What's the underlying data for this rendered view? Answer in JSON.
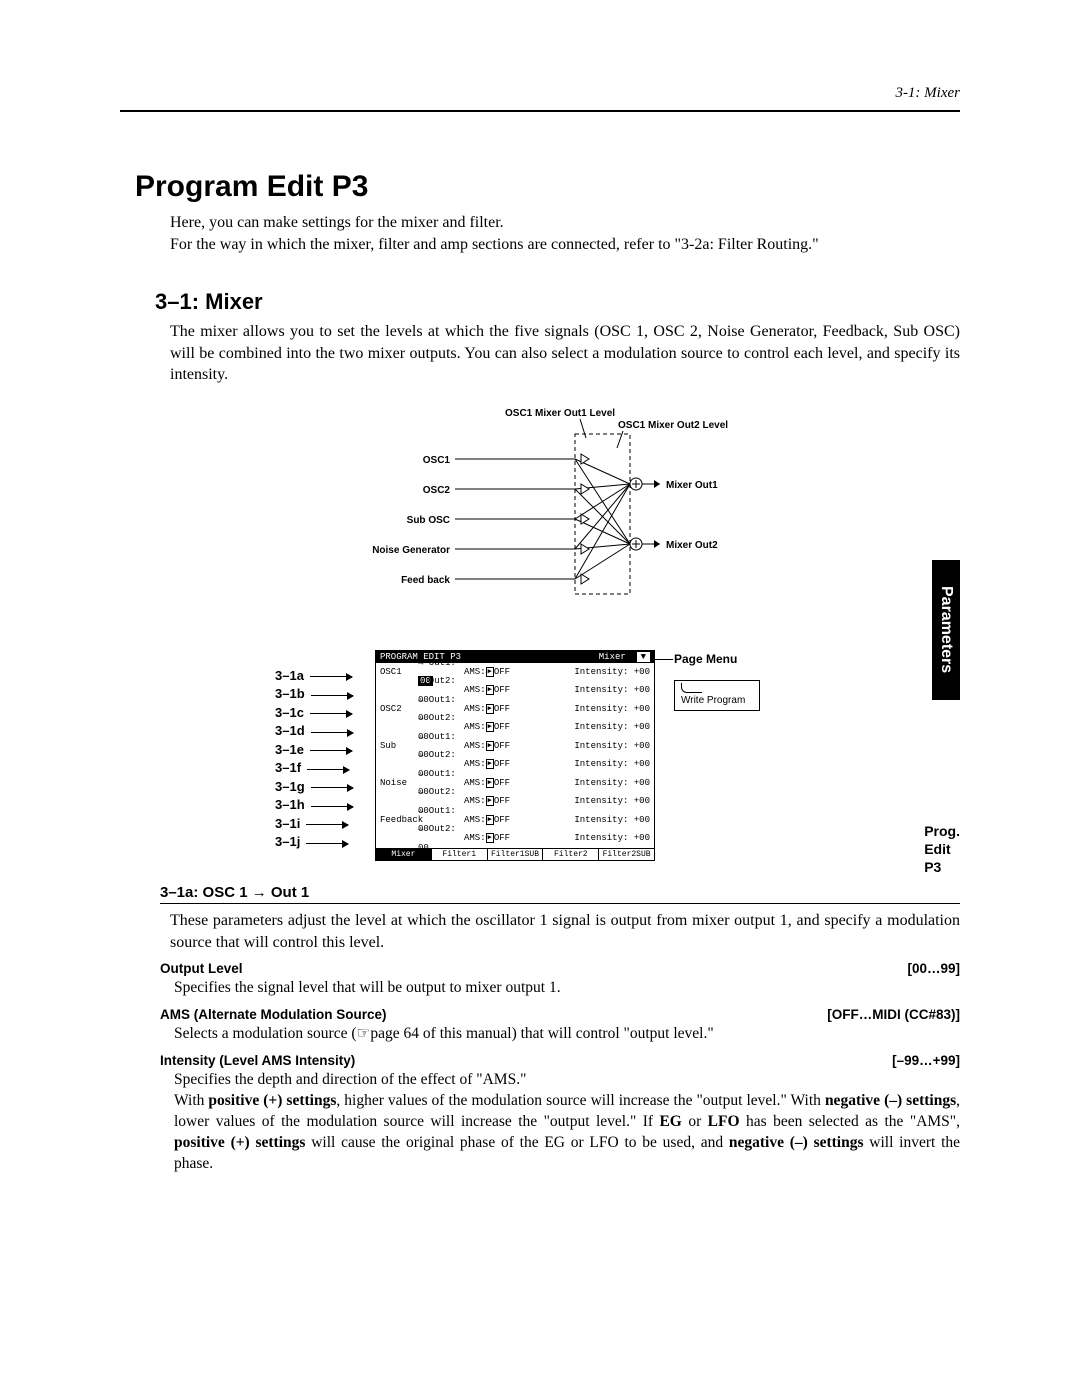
{
  "page_header": "3-1: Mixer",
  "main_title": "Program Edit P3",
  "intro1": "Here, you can make settings for the mixer and filter.",
  "intro2": "For the way in which the mixer, filter and amp sections are connected, refer to \"3-2a: Filter Routing.\"",
  "mixer_title": "3–1: Mixer",
  "mixer_body": "The mixer allows you to set the levels at which the five signals (OSC 1, OSC 2, Noise Generator, Feedback, Sub OSC) will be combined into the two mixer outputs. You can also select a modulation source to control each level, and specify its intensity.",
  "diagram": {
    "label_top1": "OSC1 Mixer Out1 Level",
    "label_top2": "OSC1 Mixer Out2 Level",
    "inputs": [
      "OSC1",
      "OSC2",
      "Sub OSC",
      "Noise Generator",
      "Feed back"
    ],
    "outputs": [
      "Mixer Out1",
      "Mixer Out2"
    ],
    "fontsize": 10,
    "font_family": "Arial",
    "font_weight": "bold",
    "line_color": "#000000",
    "dash": "4,3"
  },
  "screen": {
    "title_left": "PROGRAM EDIT P3",
    "title_right": "Mixer",
    "menu_glyph": "▼",
    "row_labels": [
      "3–1a",
      "3–1b",
      "3–1c",
      "3–1d",
      "3–1e",
      "3–1f",
      "3–1g",
      "3–1h",
      "3–1i",
      "3–1j"
    ],
    "rows": [
      {
        "lbl": "OSC1",
        "out": "→ Out1: ",
        "val": "00",
        "hl": true,
        "ams": "AMS:",
        "amsbtn": "▶",
        "amsv": "OFF",
        "int": "Intensity: +00"
      },
      {
        "lbl": "",
        "out": "→ Out2: 00",
        "val": "",
        "hl": false,
        "ams": "AMS:",
        "amsbtn": "▶",
        "amsv": "OFF",
        "int": "Intensity: +00"
      },
      {
        "lbl": "OSC2",
        "out": "→ Out1: 00",
        "val": "",
        "hl": false,
        "ams": "AMS:",
        "amsbtn": "▶",
        "amsv": "OFF",
        "int": "Intensity: +00"
      },
      {
        "lbl": "",
        "out": "→ Out2: 00",
        "val": "",
        "hl": false,
        "ams": "AMS:",
        "amsbtn": "▶",
        "amsv": "OFF",
        "int": "Intensity: +00"
      },
      {
        "lbl": "Sub",
        "out": "→ Out1: 00",
        "val": "",
        "hl": false,
        "ams": "AMS:",
        "amsbtn": "▶",
        "amsv": "OFF",
        "int": "Intensity: +00"
      },
      {
        "lbl": "",
        "out": "→ Out2: 00",
        "val": "",
        "hl": false,
        "ams": "AMS:",
        "amsbtn": "▶",
        "amsv": "OFF",
        "int": "Intensity: +00"
      },
      {
        "lbl": "Noise",
        "out": "→ Out1: 00",
        "val": "",
        "hl": false,
        "ams": "AMS:",
        "amsbtn": "▶",
        "amsv": "OFF",
        "int": "Intensity: +00"
      },
      {
        "lbl": "",
        "out": "→ Out2: 00",
        "val": "",
        "hl": false,
        "ams": "AMS:",
        "amsbtn": "▶",
        "amsv": "OFF",
        "int": "Intensity: +00"
      },
      {
        "lbl": "Feedback",
        "out": "→ Out1: 00",
        "val": "",
        "hl": false,
        "ams": "AMS:",
        "amsbtn": "▶",
        "amsv": "OFF",
        "int": "Intensity: +00"
      },
      {
        "lbl": "",
        "out": "→ Out2: 00",
        "val": "",
        "hl": false,
        "ams": "AMS:",
        "amsbtn": "▶",
        "amsv": "OFF",
        "int": "Intensity: +00"
      }
    ],
    "tabs": [
      "Mixer",
      "Filter1",
      "Filter1SUB",
      "Filter2",
      "Filter2SUB"
    ],
    "active_tab": 0
  },
  "page_menu": {
    "label": "Page Menu",
    "item": "Write Program"
  },
  "side_tab": "Parameters",
  "side_label2_l1": "Prog.",
  "side_label2_l2": "Edit",
  "side_label2_l3": "P3",
  "subsection_title": "3–1a: OSC 1 → Out 1",
  "subsection_body": "These parameters adjust the level at which the oscillator 1 signal is output from mixer output 1, and specify a modulation source that will control this level.",
  "params": [
    {
      "name": "Output Level",
      "range": "[00…99]",
      "desc": "Specifies the signal level that will be output to mixer output 1."
    },
    {
      "name": "AMS (Alternate Modulation Source)",
      "range": "[OFF…MIDI (CC#83)]",
      "desc": "Selects a modulation source (☞page 64 of this manual) that will control \"output level.\""
    },
    {
      "name": "Intensity (Level AMS Intensity)",
      "range": "[–99…+99]",
      "desc": "Specifies the depth and direction of the effect of \"AMS.\"",
      "desc2_html": "With <b>positive (+) settings</b>, higher values of the modulation source will increase the \"output level.\" With <b>negative (–) settings</b>, lower values of the modulation source will increase the \"output level.\" If <b>EG</b> or <b>LFO</b> has been selected as the \"AMS\", <b>positive (+) settings</b> will cause the original phase of the EG or LFO to be used, and <b>negative (–) settings</b> will invert the phase."
    }
  ]
}
